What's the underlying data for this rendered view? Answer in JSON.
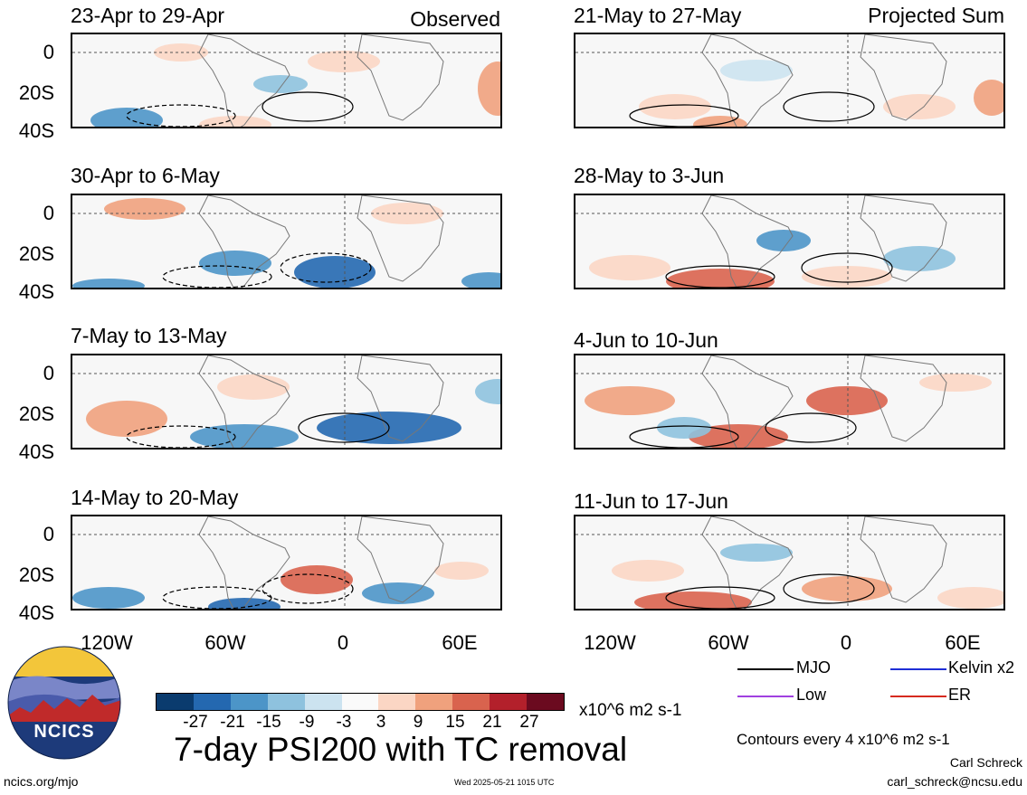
{
  "labels": {
    "observed": "Observed",
    "projected": "Projected Sum"
  },
  "y_axis_labels": [
    "0",
    "20S",
    "40S"
  ],
  "x_axis_labels": [
    "120W",
    "60W",
    "0",
    "60E"
  ],
  "panels": [
    {
      "title": "23-Apr to 29-Apr",
      "column": "left",
      "row": 0
    },
    {
      "title": "30-Apr to 6-May",
      "column": "left",
      "row": 1
    },
    {
      "title": "7-May to 13-May",
      "column": "left",
      "row": 2
    },
    {
      "title": "14-May to 20-May",
      "column": "left",
      "row": 3
    },
    {
      "title": "21-May to 27-May",
      "column": "right",
      "row": 0
    },
    {
      "title": "28-May to 3-Jun",
      "column": "right",
      "row": 1
    },
    {
      "title": "4-Jun to 10-Jun",
      "column": "right",
      "row": 2
    },
    {
      "title": "11-Jun to 17-Jun",
      "column": "right",
      "row": 3
    }
  ],
  "colorbar": {
    "colors": [
      "#0a3b6e",
      "#2468b0",
      "#4c95c8",
      "#8ec2de",
      "#cce3f0",
      "#fafafa",
      "#fbd6c4",
      "#f0a17d",
      "#d9634e",
      "#b3202b",
      "#6b0a1f"
    ],
    "ticks": [
      "-27",
      "-21",
      "-15",
      "-9",
      "-3",
      "3",
      "9",
      "15",
      "21",
      "27"
    ],
    "units": "x10^6 m2 s-1"
  },
  "main_title": "7-day PSI200 with TC removal",
  "legend": [
    {
      "label": "MJO",
      "color": "#000000"
    },
    {
      "label": "Kelvin x2",
      "color": "#1f2fd6"
    },
    {
      "label": "Low",
      "color": "#a040e0"
    },
    {
      "label": "ER",
      "color": "#d62a1f"
    }
  ],
  "contour_note": "Contours every 4 x10^6 m2 s-1",
  "author": "Carl Schreck",
  "email": "carl_schreck@ncsu.edu",
  "website": "ncics.org/mjo",
  "timestamp": "Wed 2025-05-21 1015 UTC",
  "logo_text": "NCICS"
}
